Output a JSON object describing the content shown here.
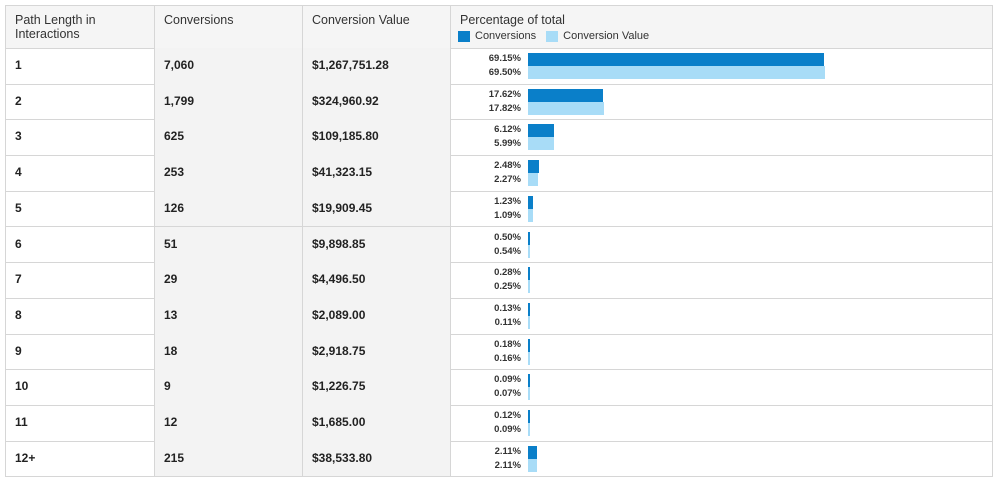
{
  "headers": {
    "path_length": "Path Length in Interactions",
    "conversions": "Conversions",
    "conversion_value": "Conversion Value",
    "percentage": "Percentage of total"
  },
  "legend": [
    {
      "label": "Conversions",
      "color": "#0a7fc9"
    },
    {
      "label": "Conversion Value",
      "color": "#a8dcf7"
    }
  ],
  "rows": [
    {
      "path": "1",
      "conversions": "7,060",
      "value": "$1,267,751.28",
      "pct_conv": "69.15%",
      "pct_val": "69.50%",
      "conv_frac": 0.6915,
      "val_frac": 0.695
    },
    {
      "path": "2",
      "conversions": "1,799",
      "value": "$324,960.92",
      "pct_conv": "17.62%",
      "pct_val": "17.82%",
      "conv_frac": 0.1762,
      "val_frac": 0.1782
    },
    {
      "path": "3",
      "conversions": "625",
      "value": "$109,185.80",
      "pct_conv": "6.12%",
      "pct_val": "5.99%",
      "conv_frac": 0.0612,
      "val_frac": 0.0599
    },
    {
      "path": "4",
      "conversions": "253",
      "value": "$41,323.15",
      "pct_conv": "2.48%",
      "pct_val": "2.27%",
      "conv_frac": 0.0248,
      "val_frac": 0.0227
    },
    {
      "path": "5",
      "conversions": "126",
      "value": "$19,909.45",
      "pct_conv": "1.23%",
      "pct_val": "1.09%",
      "conv_frac": 0.0123,
      "val_frac": 0.0109
    },
    {
      "path": "6",
      "conversions": "51",
      "value": "$9,898.85",
      "pct_conv": "0.50%",
      "pct_val": "0.54%",
      "conv_frac": 0.005,
      "val_frac": 0.0054
    },
    {
      "path": "7",
      "conversions": "29",
      "value": "$4,496.50",
      "pct_conv": "0.28%",
      "pct_val": "0.25%",
      "conv_frac": 0.0028,
      "val_frac": 0.0025
    },
    {
      "path": "8",
      "conversions": "13",
      "value": "$2,089.00",
      "pct_conv": "0.13%",
      "pct_val": "0.11%",
      "conv_frac": 0.0013,
      "val_frac": 0.0011
    },
    {
      "path": "9",
      "conversions": "18",
      "value": "$2,918.75",
      "pct_conv": "0.18%",
      "pct_val": "0.16%",
      "conv_frac": 0.0018,
      "val_frac": 0.0016
    },
    {
      "path": "10",
      "conversions": "9",
      "value": "$1,226.75",
      "pct_conv": "0.09%",
      "pct_val": "0.07%",
      "conv_frac": 0.0009,
      "val_frac": 0.0007
    },
    {
      "path": "11",
      "conversions": "12",
      "value": "$1,685.00",
      "pct_conv": "0.12%",
      "pct_val": "0.09%",
      "conv_frac": 0.0012,
      "val_frac": 0.0009
    },
    {
      "path": "12+",
      "conversions": "215",
      "value": "$38,533.80",
      "pct_conv": "2.11%",
      "pct_val": "2.11%",
      "conv_frac": 0.0211,
      "val_frac": 0.0211
    }
  ]
}
